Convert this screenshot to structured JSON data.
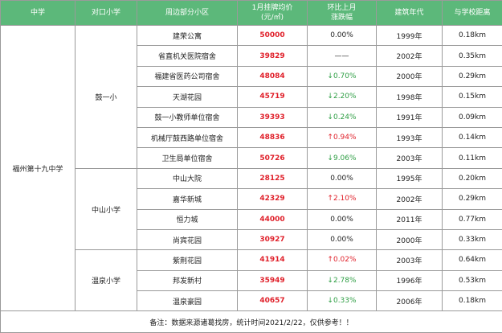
{
  "table": {
    "headers": [
      "中学",
      "对口小学",
      "周边部分小区",
      "1月挂牌均价\n(元/㎡)",
      "环比上月\n涨跌幅",
      "建筑年代",
      "与学校距离"
    ],
    "school": "福州第十九中学",
    "groups": [
      {
        "primary": "鼓一小",
        "rows": [
          [
            "建荣公寓",
            "50000",
            "0.00%",
            "1999年",
            "0.18km"
          ],
          [
            "省直机关医院宿舍",
            "39829",
            "——",
            "2002年",
            "0.35km"
          ],
          [
            "福建省医药公司宿舍",
            "48084",
            "↓0.70%",
            "2000年",
            "0.29km"
          ],
          [
            "天湖花园",
            "45719",
            "↓2.20%",
            "1998年",
            "0.15km"
          ],
          [
            "鼓一小教师单位宿舍",
            "39393",
            "↓0.24%",
            "1991年",
            "0.09km"
          ],
          [
            "机械厅鼓西路单位宿舍",
            "48836",
            "↑0.94%",
            "1993年",
            "0.14km"
          ],
          [
            "卫生局单位宿舍",
            "50726",
            "↓9.06%",
            "2003年",
            "0.11km"
          ]
        ]
      },
      {
        "primary": "中山小学",
        "rows": [
          [
            "中山大院",
            "28125",
            "0.00%",
            "1995年",
            "0.20km"
          ],
          [
            "嘉华新城",
            "42329",
            "↑2.10%",
            "2002年",
            "0.29km"
          ],
          [
            "恒力城",
            "44000",
            "0.00%",
            "2011年",
            "0.77km"
          ],
          [
            "尚宾花园",
            "30927",
            "0.00%",
            "2000年",
            "0.33km"
          ]
        ]
      },
      {
        "primary": "温泉小学",
        "rows": [
          [
            "紫荆花园",
            "41914",
            "↑0.02%",
            "2003年",
            "0.64km"
          ],
          [
            "邦发新村",
            "35949",
            "↓2.78%",
            "1996年",
            "0.53km"
          ],
          [
            "温泉豪园",
            "40657",
            "↓0.33%",
            "2006年",
            "0.18km"
          ]
        ]
      }
    ],
    "footer": "备注：数据来源诸葛找房，统计时间2021/2/22，仅供参考！！"
  }
}
